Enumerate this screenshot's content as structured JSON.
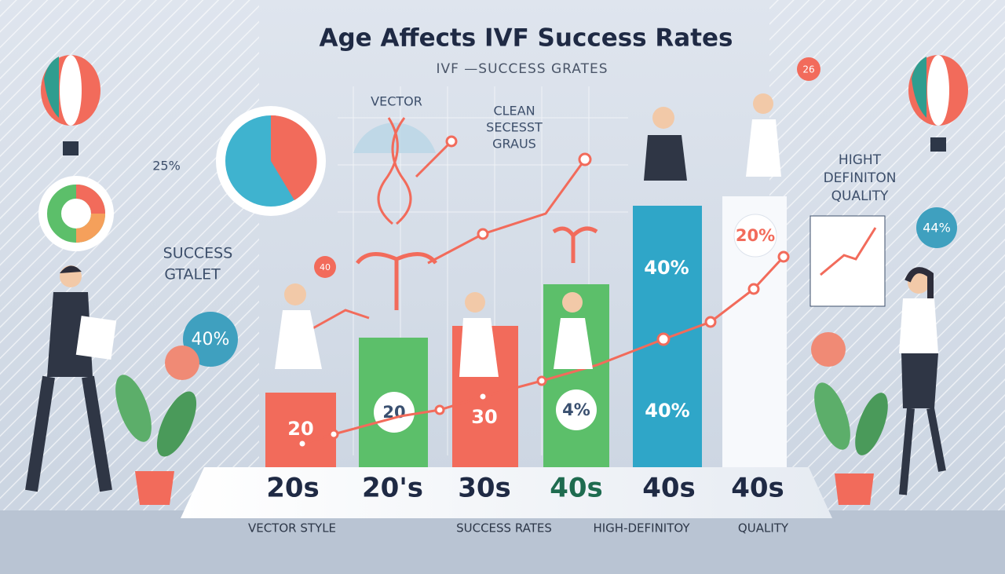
{
  "header": {
    "title": "Age Affects IVF Success Rates",
    "subtitle": "IVF —SUCCESS GRATES"
  },
  "annotations": {
    "vector": "VECTOR",
    "clean": [
      "CLEAN",
      "SECESST",
      "GRAUS"
    ],
    "pie_percent": "25%",
    "success": [
      "SUCCESS",
      "GTALET"
    ],
    "left_circle": "40%",
    "small_badge": "40",
    "top_badge": "26",
    "quality": [
      "HIGHT",
      "DEFINITON",
      "QUALITY"
    ],
    "right_circle": "44%"
  },
  "bars": [
    {
      "category": "20s",
      "labels": [
        "20"
      ]
    },
    {
      "category": "20's",
      "labels": [
        "20"
      ]
    },
    {
      "category": "30s",
      "labels": [
        "30"
      ]
    },
    {
      "category": "40s",
      "labels": [
        "4%"
      ]
    },
    {
      "category": "40s",
      "labels": [
        "40%",
        "40%"
      ]
    },
    {
      "category": "40s",
      "labels": [
        "20%"
      ]
    }
  ],
  "footer": [
    "VECTOR STYLE",
    "SUCCESS RATES",
    "HIGH-DEFINITOY",
    "QUALITY"
  ]
}
